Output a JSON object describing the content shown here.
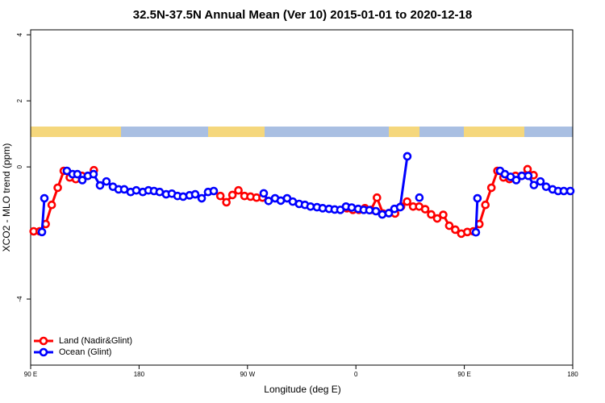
{
  "chart_data": {
    "type": "line",
    "title": "32.5N-37.5N Annual Mean (Ver 10)   2015-01-01 to 2020-12-18",
    "x_label": "Longitude (deg E)",
    "y_label": "XCO2 - MLO trend (ppm)",
    "xlim": [
      90,
      540
    ],
    "ylim": [
      -6,
      4.15
    ],
    "xticks": [
      {
        "value": 90,
        "label": "90 E"
      },
      180,
      {
        "value": 270,
        "label": "90 W"
      },
      {
        "value": 360,
        "label": "0"
      },
      {
        "value": 450,
        "label": "90 E"
      },
      {
        "value": 540,
        "label": "180"
      }
    ],
    "yticks": [
      -4,
      0,
      2,
      4
    ],
    "legend": "bottom-left",
    "series": [
      {
        "name": "Land (Nadir&Glint)",
        "color": "#ff0000",
        "x": [
          92.5,
          97.5,
          102.5,
          107.5,
          112.5,
          117.5,
          122.5,
          127.5,
          132.5,
          137.5,
          142.5,
          195,
          247.5,
          252.5,
          257.5,
          262.5,
          267.5,
          272.5,
          277.5,
          282.5,
          317.5,
          352.5,
          357.5,
          362.5,
          367.5,
          372.5,
          377.5,
          382.5,
          387.5,
          392.5,
          397.5,
          402.5,
          407.5,
          412.5,
          417.5,
          422.5,
          427.5,
          432.5,
          437.5,
          442.5,
          447.5,
          452.5,
          457.5,
          462.5,
          467.5,
          472.5,
          477.5,
          482.5,
          487.5,
          492.5,
          497.5,
          502.5,
          507.5
        ],
        "values": [
          -1.95,
          -1.95,
          -1.73,
          -1.15,
          -0.63,
          -0.12,
          -0.32,
          -0.37,
          -0.27,
          -0.27,
          -0.1,
          null,
          -0.88,
          -1.07,
          -0.85,
          -0.71,
          -0.88,
          -0.9,
          -0.93,
          -0.93,
          null,
          -1.25,
          -1.3,
          -1.3,
          -1.25,
          -1.3,
          -0.93,
          -1.41,
          -1.4,
          -1.41,
          -1.2,
          -1.05,
          -1.2,
          -1.2,
          -1.28,
          -1.44,
          -1.56,
          -1.45,
          -1.78,
          -1.9,
          -2.02,
          -1.97,
          -1.95,
          -1.73,
          -1.15,
          -0.63,
          -0.12,
          -0.32,
          -0.37,
          -0.27,
          -0.27,
          -0.07,
          -0.25
        ]
      },
      {
        "name": "Ocean (Glint)",
        "color": "#0000ff",
        "x": [
          99.4,
          101.4,
          110,
          120.1,
          124.8,
          128.8,
          132.9,
          137.5,
          142.2,
          147.6,
          152.9,
          158.3,
          163,
          167.7,
          173,
          177.7,
          183.1,
          187.8,
          192.4,
          197.1,
          202.5,
          207.2,
          211.9,
          216.6,
          221.9,
          226.6,
          232,
          237.3,
          242,
          262,
          283.5,
          287.5,
          292.9,
          297.6,
          302.9,
          307.6,
          312.9,
          317.7,
          322.3,
          327.7,
          332.4,
          337.7,
          342.4,
          347.1,
          351.8,
          356.5,
          361.9,
          366.5,
          371.2,
          376.6,
          381.9,
          387.3,
          392,
          396.7,
          402.7,
          407,
          412.7,
          436,
          459.6,
          460.9,
          470,
          479.7,
          483.7,
          488.4,
          493.1,
          497.8,
          503.1,
          507.8,
          513.2,
          517.9,
          523.3,
          527.9,
          532.6,
          538
        ],
        "values": [
          -1.97,
          -0.95,
          null,
          -0.12,
          -0.22,
          -0.22,
          -0.4,
          -0.27,
          -0.22,
          -0.56,
          -0.44,
          -0.6,
          -0.68,
          -0.68,
          -0.76,
          -0.71,
          -0.76,
          -0.71,
          -0.73,
          -0.76,
          -0.83,
          -0.81,
          -0.88,
          -0.9,
          -0.86,
          -0.83,
          -0.95,
          -0.76,
          -0.73,
          null,
          -0.8,
          -1.03,
          -0.95,
          -1.02,
          -0.95,
          -1.05,
          -1.12,
          -1.15,
          -1.2,
          -1.22,
          -1.25,
          -1.27,
          -1.29,
          -1.3,
          -1.2,
          -1.23,
          -1.27,
          -1.3,
          -1.31,
          -1.34,
          -1.44,
          -1.4,
          -1.27,
          -1.22,
          0.32,
          null,
          -0.93,
          null,
          -1.98,
          -0.95,
          null,
          -0.12,
          -0.22,
          -0.3,
          -0.4,
          -0.27,
          -0.27,
          -0.55,
          -0.44,
          -0.6,
          -0.68,
          -0.73,
          -0.73,
          -0.73
        ]
      }
    ]
  }
}
